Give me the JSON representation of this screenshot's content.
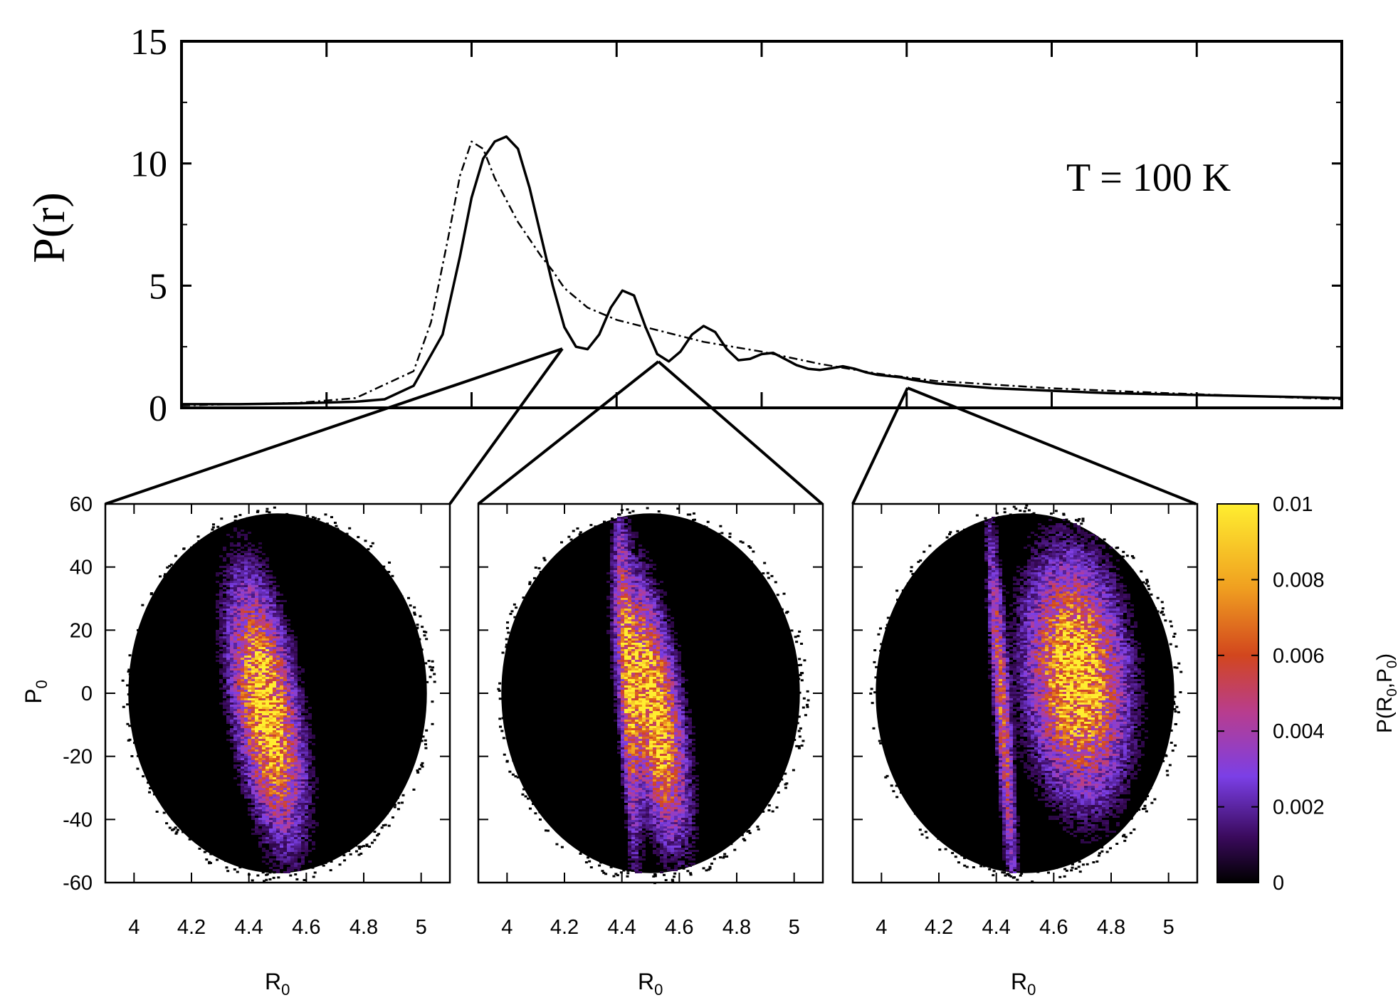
{
  "chart_data": [
    {
      "type": "line",
      "ylabel": "P(r)",
      "annotation": "T = 100 K",
      "ylim": [
        0,
        15
      ],
      "yticks": [
        "0",
        "5",
        "10",
        "15"
      ],
      "xlim": [
        3.5,
        5.5
      ],
      "grid": false,
      "series": [
        {
          "style": "solid",
          "x": [
            3.5,
            3.6,
            3.7,
            3.8,
            3.85,
            3.9,
            3.95,
            3.98,
            4.0,
            4.02,
            4.04,
            4.06,
            4.08,
            4.1,
            4.12,
            4.14,
            4.16,
            4.18,
            4.2,
            4.22,
            4.24,
            4.26,
            4.28,
            4.3,
            4.32,
            4.34,
            4.36,
            4.38,
            4.4,
            4.42,
            4.44,
            4.46,
            4.48,
            4.5,
            4.52,
            4.54,
            4.56,
            4.58,
            4.6,
            4.62,
            4.64,
            4.66,
            4.68,
            4.7,
            4.72,
            4.74,
            4.76,
            4.8,
            4.85,
            4.9,
            5.0,
            5.1,
            5.2,
            5.3,
            5.4,
            5.5
          ],
          "y": [
            0.15,
            0.15,
            0.18,
            0.25,
            0.35,
            0.9,
            3.0,
            6.2,
            8.6,
            10.2,
            10.9,
            11.1,
            10.6,
            9.0,
            7.0,
            5.0,
            3.3,
            2.5,
            2.4,
            3.0,
            4.1,
            4.8,
            4.6,
            3.3,
            2.2,
            1.9,
            2.3,
            3.0,
            3.35,
            3.1,
            2.4,
            1.95,
            2.0,
            2.2,
            2.25,
            2.0,
            1.75,
            1.6,
            1.55,
            1.62,
            1.7,
            1.6,
            1.45,
            1.35,
            1.3,
            1.25,
            1.15,
            1.0,
            0.9,
            0.8,
            0.7,
            0.6,
            0.55,
            0.5,
            0.45,
            0.4
          ]
        },
        {
          "style": "dash-dot",
          "x": [
            3.5,
            3.7,
            3.8,
            3.9,
            3.93,
            3.96,
            3.98,
            4.0,
            4.02,
            4.04,
            4.06,
            4.08,
            4.1,
            4.12,
            4.14,
            4.16,
            4.2,
            4.25,
            4.3,
            4.35,
            4.4,
            4.5,
            4.6,
            4.7,
            4.8,
            5.0,
            5.2,
            5.5
          ],
          "y": [
            0.1,
            0.2,
            0.4,
            1.5,
            3.5,
            7.0,
            9.5,
            10.9,
            10.6,
            9.4,
            8.5,
            7.6,
            6.9,
            6.2,
            5.6,
            4.9,
            4.1,
            3.6,
            3.3,
            3.0,
            2.7,
            2.3,
            1.8,
            1.4,
            1.1,
            0.8,
            0.6,
            0.35
          ]
        }
      ]
    },
    {
      "type": "heatmap",
      "xlabel": "R0",
      "ylabel": "P0",
      "xlim": [
        3.9,
        5.1
      ],
      "ylim": [
        -60,
        60
      ],
      "xticks": [
        "4",
        "4.2",
        "4.4",
        "4.6",
        "4.8",
        "5"
      ],
      "yticks": [
        "-60",
        "-40",
        "-20",
        "0",
        "20",
        "40",
        "60"
      ],
      "zlim": [
        0,
        0.01
      ],
      "zlabel": "P(R0,P0)",
      "zticks": [
        "0",
        "0.002",
        "0.004",
        "0.006",
        "0.008",
        "0.01"
      ],
      "colormap": [
        "#000000",
        "#3a0a5c",
        "#7b3fe6",
        "#b83d8e",
        "#d2461e",
        "#f0a020",
        "#ffee30"
      ],
      "panels": [
        {
          "features": [
            {
              "r": 4.46,
              "p": -5,
              "sr": 0.07,
              "sp": 26,
              "slope": -0.0016,
              "amp": 1.0
            }
          ]
        },
        {
          "features": [
            {
              "r": 4.51,
              "p": -5,
              "sr": 0.06,
              "sp": 26,
              "slope": -0.0016,
              "amp": 1.0
            },
            {
              "r": 4.42,
              "p": 0,
              "sr": 0.02,
              "sp": 38,
              "slope": -0.0005,
              "amp": 0.5
            }
          ]
        },
        {
          "features": [
            {
              "r": 4.68,
              "p": 5,
              "sr": 0.11,
              "sp": 24,
              "slope": -0.0008,
              "amp": 1.0
            },
            {
              "r": 4.42,
              "p": -5,
              "sr": 0.018,
              "sp": 40,
              "slope": -0.0007,
              "amp": 0.6
            }
          ]
        }
      ]
    }
  ],
  "labels": {
    "pr_ylabel": "P(r)",
    "annotation": "T = 100 K",
    "heatmap_xlabel": "R",
    "heatmap_xlabel_sub": "0",
    "heatmap_ylabel": "P",
    "heatmap_ylabel_sub": "0",
    "colorbar_label_main": "P(R",
    "colorbar_label_sub1": "0",
    "colorbar_label_mid": ",P",
    "colorbar_label_sub2": "0",
    "colorbar_label_end": ")"
  }
}
